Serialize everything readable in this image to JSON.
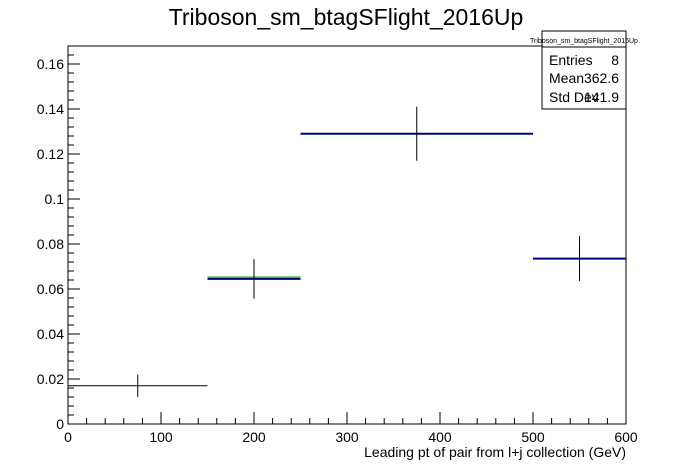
{
  "chart_data": {
    "type": "histogram",
    "title": "Triboson_sm_btagSFlight_2016Up",
    "xlabel": "Leading pt of pair from l+j collection (GeV)",
    "ylabel": "",
    "xlim": [
      0,
      600
    ],
    "ylim": [
      0,
      0.168
    ],
    "x_ticks": [
      0,
      100,
      200,
      300,
      400,
      500,
      600
    ],
    "x_tick_labels": [
      "0",
      "100",
      "200",
      "300",
      "400",
      "500",
      "600"
    ],
    "y_ticks": [
      0,
      0.02,
      0.04,
      0.06,
      0.08,
      0.1,
      0.12,
      0.14,
      0.16
    ],
    "y_tick_labels": [
      "0",
      "0.02",
      "0.04",
      "0.06",
      "0.08",
      "0.1",
      "0.12",
      "0.14",
      "0.16"
    ],
    "grid": false,
    "bins": [
      {
        "x_low": 0,
        "x_high": 150,
        "center": 75,
        "value": 0.017,
        "error": 0.005,
        "color": "#000000",
        "band": null
      },
      {
        "x_low": 150,
        "x_high": 250,
        "center": 200,
        "value": 0.0645,
        "error": 0.0088,
        "color": "#00007f",
        "band": "#33cc33"
      },
      {
        "x_low": 250,
        "x_high": 500,
        "center": 375,
        "value": 0.129,
        "error": 0.012,
        "color": "#00007f",
        "band": null
      },
      {
        "x_low": 500,
        "x_high": 600,
        "center": 550,
        "value": 0.0735,
        "error": 0.01,
        "color": "#00007f",
        "band": null
      }
    ],
    "stats_box": {
      "title": "Triboson_sm_btagSFlight_2016Up",
      "placement": "top-right",
      "rows": [
        {
          "label": "Entries",
          "value": "8"
        },
        {
          "label": "Mean",
          "value": "362.6"
        },
        {
          "label": "Std Dev",
          "value": "141.9"
        }
      ]
    }
  }
}
